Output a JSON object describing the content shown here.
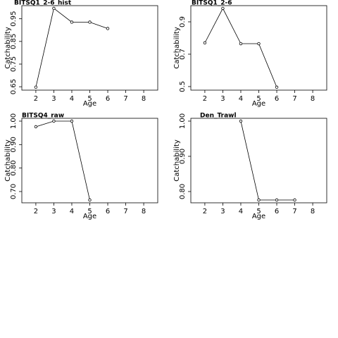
{
  "chart_data": [
    {
      "type": "line",
      "title": "BITSQ1_2-6_hist",
      "x_label": "Age",
      "y_label": "Catchability",
      "x": [
        2,
        3,
        4,
        5,
        6
      ],
      "values": [
        0.648,
        0.996,
        0.935,
        0.935,
        0.907
      ],
      "color": "#000000",
      "xlim": [
        1.22,
        8.78
      ],
      "xticks": [
        2,
        3,
        4,
        5,
        6,
        7,
        8
      ],
      "ylim": [
        0.635,
        1.008
      ],
      "yticks": [
        0.65,
        0.75,
        0.85,
        0.95
      ]
    },
    {
      "type": "line",
      "title": "BITSQ1_2-6",
      "x_label": "Age",
      "y_label": "Catchability",
      "x": [
        2,
        3,
        4,
        5,
        6
      ],
      "values": [
        0.77,
        0.983,
        0.765,
        0.765,
        0.496
      ],
      "color": "#000000",
      "xlim": [
        1.22,
        8.78
      ],
      "xticks": [
        2,
        3,
        4,
        5,
        6,
        7,
        8
      ],
      "ylim": [
        0.478,
        1.0
      ],
      "yticks": [
        0.5,
        0.7,
        0.9
      ]
    },
    {
      "type": "line",
      "title": "BITSQ4_raw",
      "x_label": "Age",
      "y_label": "Catchability",
      "x": [
        2,
        3,
        4,
        5
      ],
      "values": [
        0.976,
        1.0,
        1.0,
        0.664
      ],
      "color": "#000000",
      "xlim": [
        1.22,
        8.78
      ],
      "xticks": [
        2,
        3,
        4,
        5,
        6,
        7,
        8
      ],
      "ylim": [
        0.652,
        1.012
      ],
      "yticks": [
        {
          "value": 0.7,
          "label": "0.70"
        },
        {
          "value": 0.8,
          "label": "0.80"
        },
        {
          "value": 0.9,
          "label": "0.90"
        },
        {
          "value": 1,
          "label": "1.00"
        }
      ]
    },
    {
      "type": "line",
      "title": "Den_Trawl",
      "x_label": "Age",
      "y_label": "Catchability",
      "x": [
        4,
        5,
        6,
        7
      ],
      "values": [
        1.0,
        0.776,
        0.776,
        0.776
      ],
      "color": "#000000",
      "xlim": [
        1.22,
        8.78
      ],
      "xticks": [
        2,
        3,
        4,
        5,
        6,
        7,
        8
      ],
      "ylim": [
        0.768,
        1.008
      ],
      "yticks": [
        {
          "value": 0.8,
          "label": "0.80"
        },
        {
          "value": 0.9,
          "label": "0.90"
        },
        {
          "value": 1,
          "label": "1.00"
        }
      ]
    }
  ]
}
